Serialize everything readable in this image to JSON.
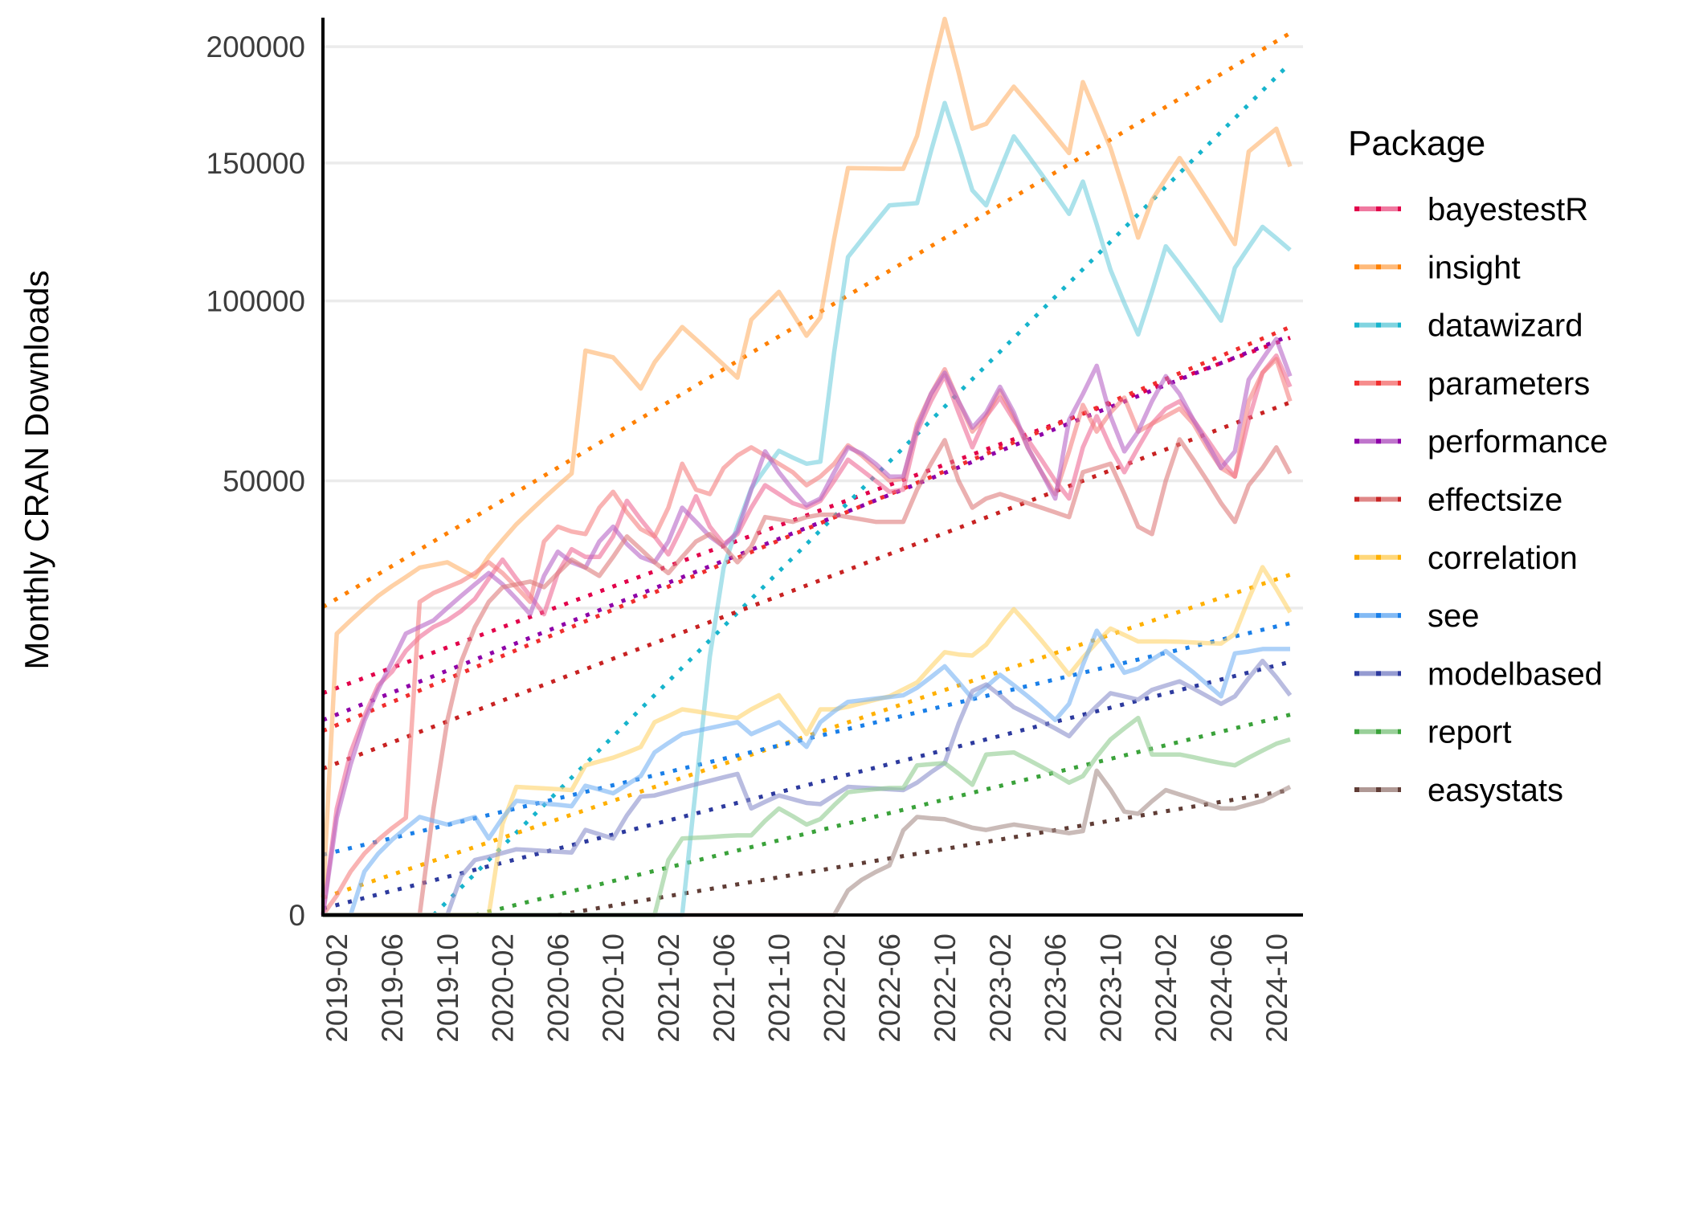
{
  "chart_data": {
    "type": "line",
    "title": "",
    "xlabel": "",
    "ylabel": "Monthly CRAN Downloads",
    "y_scale": "sqrt",
    "ylim": [
      0,
      215000
    ],
    "y_ticks": [
      0,
      50000,
      100000,
      150000,
      200000
    ],
    "y_tick_labels": [
      "0",
      "50000",
      "100000",
      "150000",
      "200000"
    ],
    "y_minor_gridlines": [
      25000
    ],
    "grid": true,
    "x_start": "2019-01",
    "x_end": "2024-11",
    "x_tick_labels": [
      "2019-02",
      "2019-06",
      "2019-10",
      "2020-02",
      "2020-06",
      "2020-10",
      "2021-02",
      "2021-06",
      "2021-10",
      "2022-02",
      "2022-06",
      "2022-10",
      "2023-02",
      "2023-06",
      "2023-10",
      "2024-02",
      "2024-06",
      "2024-10"
    ],
    "x_tick_month_index": [
      1,
      5,
      9,
      13,
      17,
      21,
      25,
      29,
      33,
      37,
      41,
      45,
      49,
      53,
      57,
      61,
      65,
      69
    ],
    "legend": {
      "title": "Package",
      "placement": "right"
    },
    "trend_style": "dotted linear trend (straight on sqrt axis)",
    "series": [
      {
        "name": "bayestestR",
        "color": "#EE6A96",
        "trend_color": "#E2004A",
        "trend": {
          "start_index": 0,
          "start": 13060,
          "end": 88400
        },
        "values": [
          0,
          3000,
          7000,
          10500,
          14000,
          15700,
          18500,
          20500,
          22000,
          23000,
          24500,
          26500,
          30000,
          33500,
          30000,
          27000,
          24000,
          31000,
          35500,
          34000,
          34000,
          38000,
          45500,
          41500,
          38000,
          34500,
          40000,
          46500,
          40000,
          36500,
          38500,
          44000,
          49000,
          47000,
          45000,
          44000,
          45500,
          50000,
          55000,
          52500,
          50000,
          47500,
          48000,
          62000,
          70000,
          77200,
          67000,
          58000,
          66000,
          71000,
          65000,
          60000,
          55000,
          50000,
          46000,
          58000,
          66000,
          58000,
          52000,
          58000,
          64000,
          68000,
          70000,
          65000,
          60000,
          55000,
          51000,
          65000,
          78000,
          83000,
          74000
        ]
      },
      {
        "name": "insight",
        "color": "#FFB36B",
        "trend_color": "#FF8000",
        "trend": {
          "start_index": 0,
          "start": 25160,
          "end": 206300
        },
        "values": [
          80,
          21000,
          23000,
          25000,
          27000,
          28700,
          30300,
          32000,
          32500,
          33000,
          31600,
          30300,
          34100,
          37300,
          40500,
          43300,
          46100,
          48900,
          51700,
          84500,
          83500,
          82500,
          78000,
          73500,
          81000,
          86300,
          91700,
          87900,
          84100,
          80300,
          76600,
          94000,
          98500,
          103000,
          96000,
          89000,
          94700,
          121300,
          148000,
          147900,
          147800,
          147700,
          147700,
          161000,
          187000,
          213000,
          188500,
          164000,
          166000,
          174000,
          182000,
          175000,
          168000,
          161000,
          154000,
          184000,
          170000,
          156000,
          138800,
          121700,
          135600,
          143800,
          152000,
          143800,
          135600,
          127500,
          119400,
          154600,
          159300,
          164000,
          148600
        ]
      },
      {
        "name": "datawizard",
        "color": "#73CFDD",
        "trend_color": "#17B4CC",
        "trend": {
          "start_index": 8,
          "start": 0,
          "end": 192460
        },
        "values": [
          0,
          0,
          0,
          0,
          0,
          0,
          0,
          0,
          0,
          0,
          0,
          0,
          0,
          0,
          0,
          0,
          0,
          0,
          0,
          0,
          0,
          0,
          0,
          0,
          0,
          0,
          0,
          4400,
          17700,
          32000,
          40100,
          48240,
          52700,
          57140,
          55500,
          54000,
          54520,
          84000,
          114850,
          121000,
          127300,
          133600,
          134000,
          134400,
          154600,
          174900,
          157100,
          139300,
          133600,
          147200,
          160800,
          153200,
          145600,
          138000,
          130400,
          142700,
          126500,
          110400,
          99250,
          89400,
          103000,
          118600,
          112400,
          106100,
          99900,
          93700,
          111100,
          118300,
          125600,
          121500,
          117300
        ]
      },
      {
        "name": "parameters",
        "color": "#F58080",
        "trend_color": "#F02E2E",
        "trend": {
          "start_index": 0,
          "start": 8990,
          "end": 91700
        },
        "values": [
          0,
          100,
          500,
          1000,
          1500,
          2000,
          2500,
          26000,
          27500,
          28500,
          29500,
          31000,
          33000,
          31000,
          28500,
          26000,
          37000,
          40000,
          39000,
          38500,
          44000,
          47500,
          43000,
          39500,
          38000,
          44000,
          54000,
          48000,
          47000,
          53000,
          56000,
          58000,
          56000,
          54000,
          52000,
          49000,
          51000,
          54000,
          58500,
          56000,
          53000,
          50000,
          50500,
          64000,
          72000,
          79000,
          70000,
          62000,
          66000,
          73000,
          66000,
          58000,
          52000,
          47000,
          57000,
          69000,
          62000,
          67000,
          71000,
          62000,
          64000,
          66000,
          68000,
          64000,
          58000,
          53000,
          51000,
          70000,
          78000,
          82000,
          70000
        ]
      },
      {
        "name": "performance",
        "color": "#B866C7",
        "trend_color": "#8E00A8",
        "trend": {
          "start_index": 0,
          "start": 10080,
          "end": 89040
        },
        "values": [
          0,
          2500,
          6000,
          10000,
          13500,
          17000,
          21000,
          22000,
          23000,
          25000,
          27000,
          29000,
          31000,
          29000,
          26500,
          24000,
          30500,
          35000,
          33000,
          32000,
          37000,
          40000,
          36500,
          34000,
          33000,
          37000,
          44000,
          41000,
          38000,
          36000,
          39000,
          48000,
          57000,
          52000,
          48000,
          44500,
          46000,
          52000,
          58000,
          56500,
          54000,
          51000,
          51000,
          63000,
          72000,
          78000,
          70000,
          63000,
          67000,
          74000,
          67000,
          58000,
          52000,
          46000,
          65000,
          72000,
          80000,
          66000,
          57000,
          62000,
          70000,
          77000,
          72000,
          65000,
          59000,
          53000,
          57000,
          76000,
          82000,
          88000,
          77000
        ]
      },
      {
        "name": "effectsize",
        "color": "#DD7B7B",
        "trend_color": "#C82222",
        "trend": {
          "start_index": 0,
          "start": 5690,
          "end": 69700
        },
        "values": [
          0,
          0,
          0,
          0,
          0,
          0,
          0,
          0,
          3000,
          10000,
          17000,
          22000,
          26000,
          28500,
          29000,
          29500,
          28500,
          31000,
          33500,
          32000,
          30500,
          34000,
          38000,
          35500,
          33000,
          31000,
          34000,
          37000,
          38500,
          36000,
          33000,
          36000,
          42000,
          41500,
          41000,
          42000,
          42500,
          42500,
          42000,
          41500,
          41000,
          41000,
          41000,
          48000,
          54000,
          59800,
          50000,
          44000,
          46000,
          47000,
          46000,
          45000,
          44000,
          43000,
          42000,
          52000,
          53000,
          54000,
          47000,
          40000,
          38500,
          50000,
          60000,
          55000,
          50000,
          45000,
          41000,
          49000,
          53000,
          58000,
          51700
        ]
      },
      {
        "name": "correlation",
        "color": "#FFD36B",
        "trend_color": "#FFB000",
        "trend": {
          "start_index": 0,
          "start": 79,
          "end": 30720
        },
        "values": [
          0,
          0,
          0,
          0,
          0,
          0,
          0,
          0,
          0,
          0,
          0,
          0,
          0,
          2200,
          4356,
          4300,
          4250,
          4200,
          4140,
          5940,
          6250,
          6560,
          7000,
          7490,
          9860,
          10500,
          11220,
          11000,
          10750,
          10500,
          10300,
          11220,
          12000,
          12800,
          10700,
          8680,
          11220,
          11220,
          11500,
          11900,
          12300,
          12680,
          13500,
          14350,
          16300,
          18310,
          18000,
          17860,
          19380,
          22100,
          24810,
          22400,
          20000,
          17600,
          15300,
          17570,
          19700,
          21770,
          20800,
          19850,
          19850,
          19850,
          19800,
          19700,
          19600,
          19540,
          20960,
          26500,
          32090,
          28200,
          24290
        ]
      },
      {
        "name": "see",
        "color": "#76B3F3",
        "trend_color": "#1A7FE8",
        "trend": {
          "start_index": 0,
          "start": 965,
          "end": 22590
        },
        "values": [
          0,
          0,
          0,
          500,
          1000,
          1500,
          2000,
          2548,
          2350,
          2170,
          2350,
          2548,
          1550,
          2500,
          3456,
          3370,
          3300,
          3220,
          3140,
          4430,
          4180,
          3930,
          4500,
          5120,
          7010,
          7850,
          8680,
          8970,
          9270,
          9560,
          9860,
          8680,
          9270,
          9860,
          8700,
          7500,
          9860,
          11000,
          12050,
          12230,
          12420,
          12600,
          12800,
          13700,
          15000,
          16410,
          14400,
          12430,
          13800,
          15300,
          14000,
          12700,
          11400,
          10080,
          11820,
          16600,
          21440,
          18500,
          15570,
          16130,
          17300,
          18470,
          17000,
          15600,
          14100,
          12680,
          18160,
          18400,
          18770,
          18770,
          18770
        ]
      },
      {
        "name": "modelbased",
        "color": "#8A90CC",
        "trend_color": "#2D3A9E",
        "trend": {
          "start_index": 0,
          "start": 11,
          "end": 16990
        },
        "values": [
          0,
          0,
          0,
          0,
          0,
          0,
          0,
          0,
          0,
          0,
          400,
          800,
          897,
          1020,
          1145,
          1120,
          1090,
          1060,
          1035,
          1920,
          1730,
          1550,
          2630,
          3720,
          3790,
          4030,
          4280,
          4530,
          4780,
          5030,
          5280,
          3010,
          3400,
          3790,
          3560,
          3330,
          3260,
          3800,
          4356,
          4300,
          4250,
          4190,
          4140,
          4650,
          5400,
          6120,
          9700,
          13310,
          14090,
          12800,
          11460,
          10700,
          9970,
          9230,
          8480,
          10080,
          11570,
          13050,
          12680,
          12300,
          13440,
          13960,
          14490,
          13600,
          12700,
          11820,
          12680,
          14900,
          17130,
          15000,
          12800
        ]
      },
      {
        "name": "report",
        "color": "#8FCB8F",
        "trend_color": "#3AA23A",
        "trend": {
          "start_index": 11,
          "start": 0,
          "end": 10640
        },
        "values": [
          0,
          0,
          0,
          0,
          0,
          0,
          0,
          0,
          0,
          0,
          0,
          0,
          0,
          0,
          0,
          0,
          0,
          0,
          0,
          0,
          0,
          0,
          0,
          0,
          0,
          800,
          1550,
          1580,
          1610,
          1650,
          1680,
          1680,
          2350,
          3010,
          2590,
          2170,
          2440,
          3200,
          4000,
          4100,
          4200,
          4280,
          4280,
          5940,
          6030,
          6120,
          5300,
          4500,
          6830,
          6920,
          7010,
          6420,
          5830,
          5240,
          4650,
          5120,
          6650,
          8170,
          9240,
          10300,
          6830,
          6830,
          6830,
          6600,
          6350,
          6120,
          5940,
          6560,
          7170,
          7780,
          8170
        ]
      },
      {
        "name": "easystats",
        "color": "#A78E89",
        "trend_color": "#603D36",
        "trend": {
          "start_index": 17,
          "start": 0,
          "end": 4140
        },
        "values": [
          0,
          0,
          0,
          0,
          0,
          0,
          0,
          0,
          0,
          0,
          0,
          0,
          0,
          0,
          0,
          0,
          0,
          0,
          0,
          0,
          0,
          0,
          0,
          0,
          0,
          0,
          0,
          0,
          0,
          0,
          0,
          0,
          0,
          0,
          0,
          0,
          0,
          0,
          160,
          330,
          490,
          651,
          1900,
          2548,
          2480,
          2436,
          2230,
          2018,
          1920,
          2050,
          2170,
          2070,
          1970,
          1870,
          1777,
          1870,
          5520,
          4180,
          2835,
          2718,
          3430,
          4140,
          3850,
          3580,
          3290,
          3010,
          3010,
          3230,
          3456,
          3900,
          4356
        ]
      }
    ]
  }
}
